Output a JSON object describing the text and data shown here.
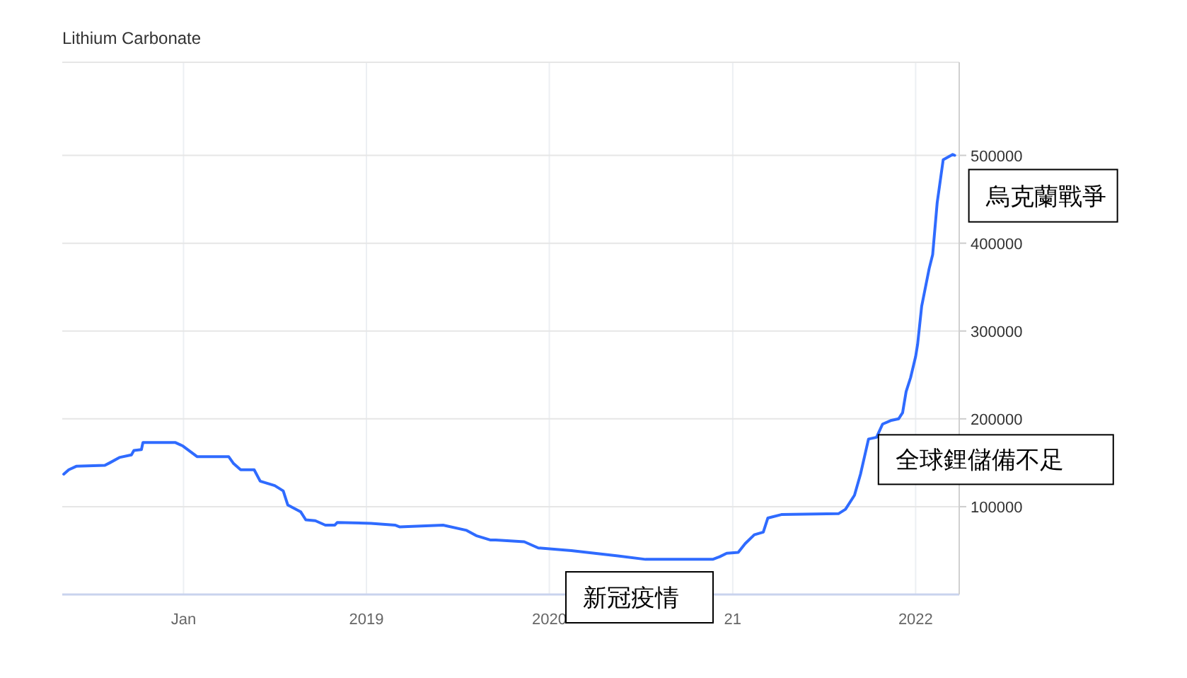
{
  "chart_data": {
    "type": "line",
    "title": "Lithium Carbonate",
    "x": [
      "2017-05-07",
      "2017-05-17",
      "2017-06-01",
      "2017-07-28",
      "2017-08-07",
      "2017-08-26",
      "2017-09-19",
      "2017-09-24",
      "2017-10-09",
      "2017-10-12",
      "2017-12-16",
      "2017-12-31",
      "2018-01-28",
      "2018-04-01",
      "2018-04-11",
      "2018-04-25",
      "2018-05-22",
      "2018-06-03",
      "2018-07-02",
      "2018-07-19",
      "2018-07-28",
      "2018-08-23",
      "2018-09-02",
      "2018-09-21",
      "2018-10-11",
      "2018-10-30",
      "2018-11-04",
      "2019-01-10",
      "2019-02-27",
      "2019-03-08",
      "2019-06-03",
      "2019-07-20",
      "2019-08-08",
      "2019-09-06",
      "2019-09-16",
      "2019-11-12",
      "2019-12-10",
      "2020-02-14",
      "2020-05-17",
      "2020-07-11",
      "2020-11-22",
      "2020-12-06",
      "2020-12-20",
      "2021-01-12",
      "2021-01-26",
      "2021-02-13",
      "2021-03-03",
      "2021-03-12",
      "2021-04-08",
      "2021-07-31",
      "2021-08-14",
      "2021-09-01",
      "2021-09-13",
      "2021-09-29",
      "2021-10-15",
      "2021-10-27",
      "2021-11-12",
      "2021-11-28",
      "2021-12-06",
      "2021-12-13",
      "2021-12-22",
      "2022-01-01",
      "2022-01-05",
      "2022-01-13",
      "2022-01-28",
      "2022-02-04",
      "2022-02-13",
      "2022-02-25",
      "2022-03-16",
      "2022-03-20"
    ],
    "series": [
      {
        "color": "#2f6bff",
        "values": [
          137000,
          142000,
          146000,
          147000,
          150000,
          156000,
          159000,
          164000,
          165000,
          173000,
          173000,
          169000,
          157000,
          157000,
          149000,
          142000,
          142000,
          129000,
          124000,
          118000,
          102000,
          94000,
          85000,
          84000,
          79000,
          79000,
          82000,
          81000,
          79000,
          77000,
          79000,
          73000,
          67000,
          62000,
          62000,
          60000,
          53000,
          50000,
          44000,
          40000,
          40000,
          43000,
          47000,
          48000,
          58000,
          68000,
          71000,
          87000,
          91000,
          92000,
          97000,
          113000,
          137000,
          177000,
          179000,
          194000,
          198000,
          200000,
          207000,
          231000,
          247000,
          271000,
          285000,
          328000,
          371000,
          387000,
          446000,
          495000,
          501000,
          500000
        ]
      }
    ],
    "xlim": [
      "2017-05-04",
      "2022-03-29"
    ],
    "xticks": [
      {
        "value": "2018-01-01",
        "label": "Jan"
      },
      {
        "value": "2019-01-01",
        "label": "2019"
      },
      {
        "value": "2020-01-01",
        "label": "2020"
      },
      {
        "value": "2021-01-01",
        "label": "21"
      },
      {
        "value": "2022-01-01",
        "label": "2022"
      }
    ],
    "ylim": [
      0,
      606000
    ],
    "yticks": [
      100000,
      200000,
      300000,
      400000,
      500000
    ],
    "grid": true,
    "annotations": [
      "新冠疫情",
      {
        "text": "全球鋰儲備不足",
        "x": "2021-09-29",
        "y": 177000
      },
      {
        "text": "烏克蘭戰爭",
        "x": "2022-03-20",
        "y": 500000
      }
    ]
  }
}
